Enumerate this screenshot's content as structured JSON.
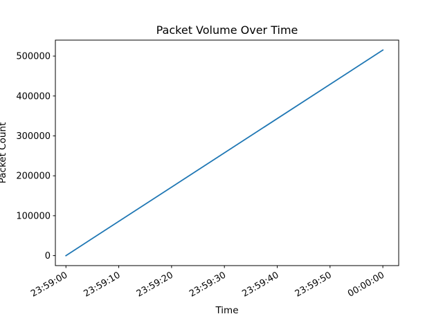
{
  "chart_data": {
    "type": "line",
    "title": "Packet Volume Over Time",
    "xlabel": "Time",
    "ylabel": "Packet Count",
    "x_ticks": [
      "23:59:00",
      "23:59:10",
      "23:59:20",
      "23:59:30",
      "23:59:40",
      "23:59:50",
      "00:00:00"
    ],
    "y_ticks": [
      0,
      100000,
      200000,
      300000,
      400000,
      500000
    ],
    "xlim": [
      "23:58:58",
      "00:00:03"
    ],
    "ylim": [
      -25000,
      540000
    ],
    "grid": false,
    "legend": "none",
    "series": [
      {
        "color": "#1f77b4",
        "points": [
          {
            "x": "23:59:00",
            "y": 0
          },
          {
            "x": "00:00:00",
            "y": 515000
          }
        ]
      }
    ]
  }
}
